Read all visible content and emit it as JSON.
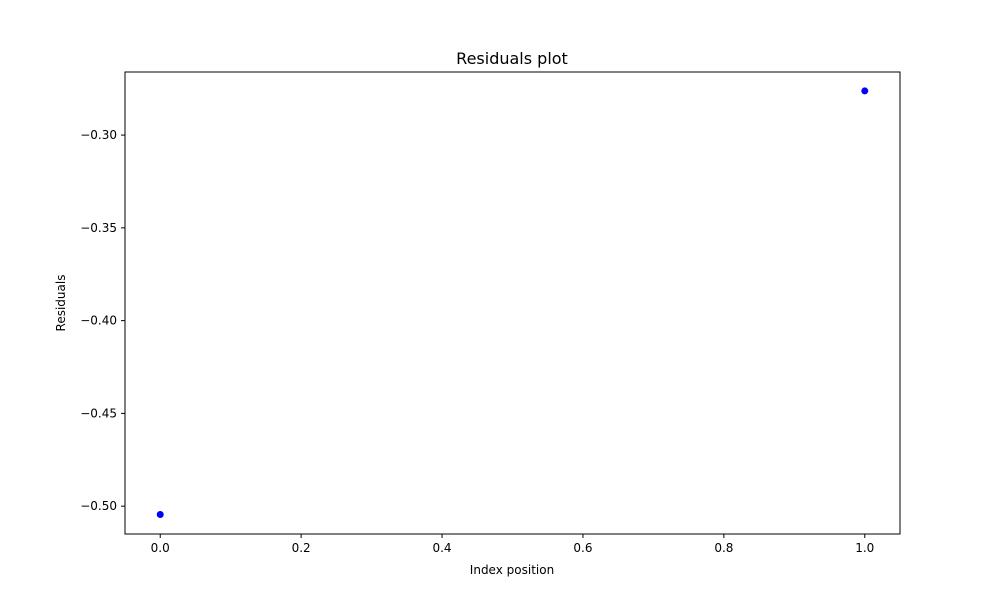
{
  "chart_data": {
    "type": "scatter",
    "title": "Residuals plot",
    "xlabel": "Index position",
    "ylabel": "Residuals",
    "xlim": [
      -0.05,
      1.05
    ],
    "ylim": [
      -0.515,
      -0.266
    ],
    "xticks": [
      0.0,
      0.2,
      0.4,
      0.6,
      0.8,
      1.0
    ],
    "xtick_labels": [
      "0.0",
      "0.2",
      "0.4",
      "0.6",
      "0.8",
      "1.0"
    ],
    "yticks": [
      -0.5,
      -0.45,
      -0.4,
      -0.35,
      -0.3
    ],
    "ytick_labels": [
      "−0.50",
      "−0.45",
      "−0.40",
      "−0.35",
      "−0.30"
    ],
    "grid": false,
    "legend": "none",
    "marker_color": "#0000ff",
    "series": [
      {
        "x": [
          0,
          1
        ],
        "y": [
          -0.5045,
          -0.2762
        ]
      }
    ]
  }
}
